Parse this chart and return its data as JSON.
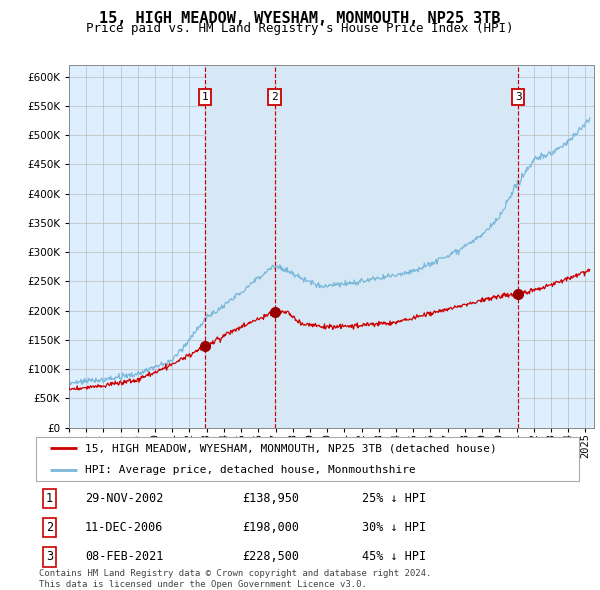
{
  "title": "15, HIGH MEADOW, WYESHAM, MONMOUTH, NP25 3TB",
  "subtitle": "Price paid vs. HM Land Registry's House Price Index (HPI)",
  "ylim": [
    0,
    620000
  ],
  "yticks": [
    0,
    50000,
    100000,
    150000,
    200000,
    250000,
    300000,
    350000,
    400000,
    450000,
    500000,
    550000,
    600000
  ],
  "xlim_start": 1995.0,
  "xlim_end": 2025.5,
  "hpi_color": "#7ab8d9",
  "price_color": "#cc0000",
  "vline_color": "#cc0000",
  "shade_color": "#d6e8f5",
  "sale_dates": [
    2002.915,
    2006.944,
    2021.1
  ],
  "sale_prices": [
    138950,
    198000,
    228500
  ],
  "sale_labels": [
    "1",
    "2",
    "3"
  ],
  "legend_price_label": "15, HIGH MEADOW, WYESHAM, MONMOUTH, NP25 3TB (detached house)",
  "legend_hpi_label": "HPI: Average price, detached house, Monmouthshire",
  "table_rows": [
    {
      "num": "1",
      "date": "29-NOV-2002",
      "price": "£138,950",
      "pct": "25% ↓ HPI"
    },
    {
      "num": "2",
      "date": "11-DEC-2006",
      "price": "£198,000",
      "pct": "30% ↓ HPI"
    },
    {
      "num": "3",
      "date": "08-FEB-2021",
      "price": "£228,500",
      "pct": "45% ↓ HPI"
    }
  ],
  "footnote": "Contains HM Land Registry data © Crown copyright and database right 2024.\nThis data is licensed under the Open Government Licence v3.0.",
  "background_fill": "#ddeeff",
  "grid_color": "#bbbbbb",
  "title_fontsize": 11,
  "subtitle_fontsize": 9,
  "tick_fontsize": 7.5,
  "legend_fontsize": 8,
  "table_fontsize": 8.5,
  "footnote_fontsize": 6.5
}
